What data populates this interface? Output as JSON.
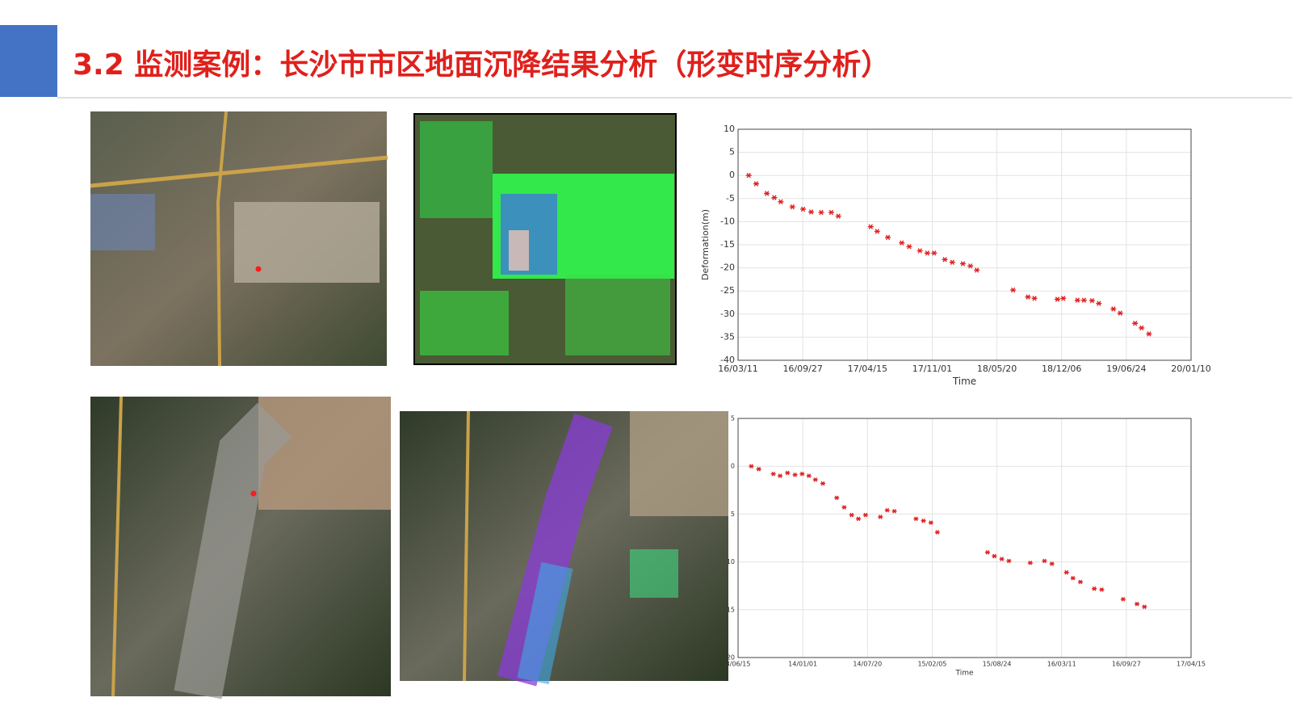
{
  "slide_title": "3.2 监测案例：长沙市市区地面沉降结果分析（形变时序分析）",
  "chart_data": [
    {
      "type": "scatter",
      "ylabel": "Deformation(m)",
      "xlabel": "Time",
      "color": "#e02020",
      "grid": true,
      "xlim": [
        "16/03/11",
        "20/01/10"
      ],
      "xticks": [
        "16/03/11",
        "16/09/27",
        "17/04/15",
        "17/11/01",
        "18/05/20",
        "18/12/06",
        "19/06/24",
        "20/01/10"
      ],
      "ylim": [
        -40,
        10
      ],
      "yticks": [
        10,
        5,
        0,
        -5,
        -10,
        -15,
        -20,
        -25,
        -30,
        -35,
        -40
      ],
      "x": [
        "16/04/13",
        "16/05/06",
        "16/06/08",
        "16/07/01",
        "16/07/21",
        "16/08/26",
        "16/09/28",
        "16/10/23",
        "16/11/23",
        "16/12/24",
        "17/01/15",
        "17/04/25",
        "17/05/15",
        "17/06/17",
        "17/07/30",
        "17/08/22",
        "17/09/24",
        "17/10/17",
        "17/11/07",
        "17/12/10",
        "18/01/02",
        "18/02/04",
        "18/02/27",
        "18/03/19",
        "18/07/09",
        "18/08/24",
        "18/09/13",
        "18/11/23",
        "18/12/11",
        "19/01/24",
        "19/02/13",
        "19/03/10",
        "19/03/31",
        "19/05/15",
        "19/06/05",
        "19/07/21",
        "19/08/10",
        "19/09/02"
      ],
      "values": [
        0,
        -1.8,
        -3.9,
        -4.8,
        -5.7,
        -6.8,
        -7.3,
        -7.9,
        -8.0,
        -8.0,
        -8.8,
        -11.1,
        -12.1,
        -13.4,
        -14.6,
        -15.4,
        -16.3,
        -16.8,
        -16.8,
        -18.2,
        -18.8,
        -19.1,
        -19.6,
        -20.5,
        -24.8,
        -26.3,
        -26.6,
        -26.8,
        -26.6,
        -27.0,
        -27.0,
        -27.1,
        -27.7,
        -28.9,
        -29.8,
        -32.0,
        -33.0,
        -34.3
      ]
    },
    {
      "type": "scatter",
      "xlabel": "Time",
      "color": "#e02020",
      "grid": true,
      "xlim": [
        "13/06/15",
        "17/04/15"
      ],
      "xticks": [
        {
          "value": "13/06/15",
          "label": "3/06/15"
        },
        "14/01/01",
        "14/07/20",
        "15/02/05",
        "15/08/24",
        "16/03/11",
        "16/09/27",
        "17/04/15"
      ],
      "ylim": [
        -20,
        5
      ],
      "yticks": [
        5,
        0,
        {
          "value": -5,
          "label": "5"
        },
        {
          "value": -10,
          "label": "10"
        },
        {
          "value": -15,
          "label": "15"
        },
        {
          "value": -20,
          "label": "20"
        }
      ],
      "x": [
        "13/07/26",
        "13/08/18",
        "13/10/02",
        "13/10/23",
        "13/11/15",
        "13/12/08",
        "13/12/30",
        "14/01/20",
        "14/02/09",
        "14/03/04",
        "14/04/16",
        "14/05/09",
        "14/06/01",
        "14/06/22",
        "14/07/14",
        "14/08/29",
        "14/09/19",
        "14/10/11",
        "14/12/17",
        "15/01/09",
        "15/02/01",
        "15/02/21",
        "15/07/26",
        "15/08/16",
        "15/09/08",
        "15/09/30",
        "15/12/05",
        "16/01/18",
        "16/02/10",
        "16/03/26",
        "16/04/15",
        "16/05/08",
        "16/06/20",
        "16/07/13",
        "16/09/17",
        "16/10/30",
        "16/11/22"
      ],
      "values": [
        0,
        -0.3,
        -0.8,
        -1.0,
        -0.7,
        -0.9,
        -0.8,
        -1.0,
        -1.4,
        -1.8,
        -3.3,
        -4.3,
        -5.1,
        -5.5,
        -5.1,
        -5.3,
        -4.6,
        -4.7,
        -5.5,
        -5.7,
        -5.9,
        -6.9,
        -9.0,
        -9.4,
        -9.7,
        -9.9,
        -10.1,
        -9.9,
        -10.2,
        -11.1,
        -11.7,
        -12.1,
        -12.8,
        -12.9,
        -13.9,
        -14.4,
        -14.7
      ]
    }
  ]
}
